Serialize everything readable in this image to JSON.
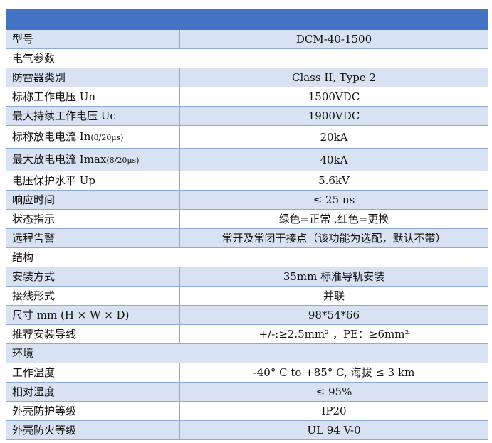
{
  "colors": {
    "header": "#4472C4",
    "band": "#D9E2F3",
    "border": "#8EAADB"
  },
  "rows": [
    {
      "label": "型号",
      "value": "DCM-40-1500"
    },
    {
      "section": "电气参数"
    },
    {
      "label": "防雷器类别",
      "value": "Class II, Type 2"
    },
    {
      "label": "标称工作电压 Un",
      "value": "1500VDC"
    },
    {
      "label": "最大持续工作电压 Uc",
      "value": "1900VDC"
    },
    {
      "label": "标称放电电流 In",
      "label_suffix": "(8/20μs)",
      "value": "20kA"
    },
    {
      "label": "最大放电电流 Imax",
      "label_suffix": "(8/20μs)",
      "value": "40kA"
    },
    {
      "label": "电压保护水平 Up",
      "value": "5.6kV"
    },
    {
      "label": "响应时间",
      "value": "≤ 25 ns"
    },
    {
      "label": "状态指示",
      "value": "绿色=正常 ,红色=更换"
    },
    {
      "label": "远程告警",
      "value": "常开及常闭干接点（该功能为选配，默认不带）"
    },
    {
      "section": "结构"
    },
    {
      "label": "安装方式",
      "value": "35mm 标准导轨安装"
    },
    {
      "label": "接线形式",
      "value": "并联"
    },
    {
      "label": "尺寸 mm (H × W × D)",
      "value": "98*54*66"
    },
    {
      "label": "推荐安装导线",
      "value": "+/-:≥2.5mm² ，PE：≥6mm²"
    },
    {
      "section": "环境"
    },
    {
      "label": "工作温度",
      "value": "-40° C to +85° C, 海拔 ≤ 3 km"
    },
    {
      "label": "相对湿度",
      "value": "≤ 95%"
    },
    {
      "label": "外壳防护等级",
      "value": "IP20"
    },
    {
      "label": "外壳防火等级",
      "value": "UL 94 V-0"
    }
  ]
}
